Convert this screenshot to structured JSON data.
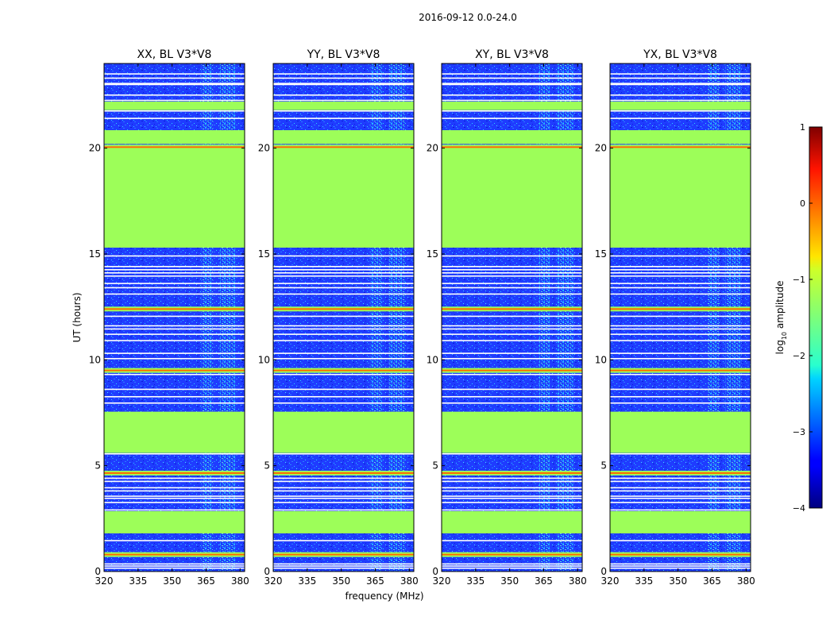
{
  "suptitle": "2016-09-12 0.0-24.0",
  "colors": {
    "flagged": "#9dfe59",
    "orange": "#ff6a00",
    "noise_bg": "#1f3cff",
    "noise_dark": "#0a1fd6",
    "speckle": "#2ad6ff",
    "line": "#ffffff"
  },
  "chart_data": {
    "type": "heatmap",
    "title": "2016-09-12 0.0-24.0",
    "xlabel": "frequency (MHz)",
    "ylabel": "UT (hours)",
    "xlim": [
      320,
      382
    ],
    "ylim": [
      0,
      24
    ],
    "xticks": [
      320,
      335,
      350,
      365,
      380
    ],
    "yticks": [
      0,
      5,
      10,
      15,
      20
    ],
    "panels": [
      {
        "name": "XX",
        "title": "XX, BL V3*V8"
      },
      {
        "name": "YY",
        "title": "YY, BL V3*V8"
      },
      {
        "name": "XY",
        "title": "XY, BL V3*V8"
      },
      {
        "name": "YX",
        "title": "YX, BL V3*V8"
      }
    ],
    "flagged_bands_ut": [
      [
        2.85,
        1.8
      ],
      [
        7.55,
        5.6
      ],
      [
        15.3,
        20.0
      ],
      [
        20.85,
        20.2
      ],
      [
        22.2,
        21.8
      ]
    ],
    "high_amplitude_rows_ut": [
      0.8,
      4.65,
      9.5,
      12.4,
      20.05
    ],
    "rfi_frequency_ranges_mhz": [
      [
        363,
        368
      ],
      [
        371,
        378
      ]
    ],
    "colorbar": {
      "label": "log10 amplitude",
      "label_main": "log",
      "label_sub": "10",
      "label_rest": " amplitude",
      "range": [
        -4,
        1
      ],
      "ticks": [
        1,
        0,
        -1,
        -2,
        -3,
        -4
      ],
      "tick_labels": [
        "1",
        "0",
        "−1",
        "−2",
        "−3",
        "−4"
      ],
      "colormap": "jet"
    }
  }
}
